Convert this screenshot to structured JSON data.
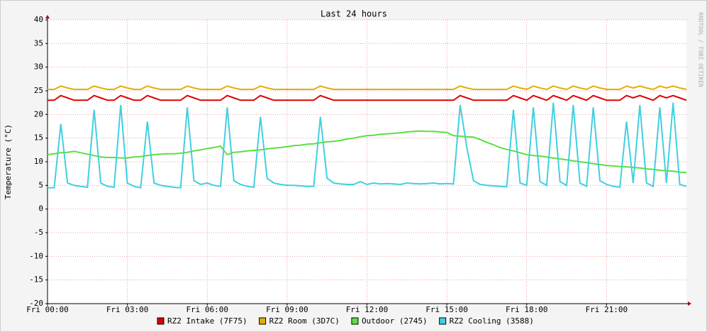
{
  "chart_data": {
    "type": "line",
    "title": "Last 24 hours",
    "y_label": "Temperature (°C)",
    "watermark": "RRDTOOL / TOBI OETIKER",
    "x": [
      0,
      0.25,
      0.5,
      0.75,
      1,
      1.25,
      1.5,
      1.75,
      2,
      2.25,
      2.5,
      2.75,
      3,
      3.25,
      3.5,
      3.75,
      4,
      4.25,
      4.5,
      4.75,
      5,
      5.25,
      5.5,
      5.75,
      6,
      6.25,
      6.5,
      6.75,
      7,
      7.25,
      7.5,
      7.75,
      8,
      8.25,
      8.5,
      8.75,
      9,
      9.25,
      9.5,
      9.75,
      10,
      10.25,
      10.5,
      10.75,
      11,
      11.25,
      11.5,
      11.75,
      12,
      12.25,
      12.5,
      12.75,
      13,
      13.25,
      13.5,
      13.75,
      14,
      14.25,
      14.5,
      14.75,
      15,
      15.25,
      15.5,
      15.75,
      16,
      16.25,
      16.5,
      16.75,
      17,
      17.25,
      17.5,
      17.75,
      18,
      18.25,
      18.5,
      18.75,
      19,
      19.25,
      19.5,
      19.75,
      20,
      20.25,
      20.5,
      20.75,
      21,
      21.25,
      21.5,
      21.75,
      22,
      22.25,
      22.5,
      22.75,
      23,
      23.25,
      23.5,
      23.75,
      24
    ],
    "xlim": [
      0,
      24
    ],
    "xticks": [
      {
        "value": 0,
        "label": "Fri 00:00"
      },
      {
        "value": 3,
        "label": "Fri 03:00"
      },
      {
        "value": 6,
        "label": "Fri 06:00"
      },
      {
        "value": 9,
        "label": "Fri 09:00"
      },
      {
        "value": 12,
        "label": "Fri 12:00"
      },
      {
        "value": 15,
        "label": "Fri 15:00"
      },
      {
        "value": 18,
        "label": "Fri 18:00"
      },
      {
        "value": 21,
        "label": "Fri 21:00"
      }
    ],
    "ylim": [
      -20,
      40
    ],
    "yticks": [
      -20,
      -15,
      -10,
      -5,
      0,
      5,
      10,
      15,
      20,
      25,
      30,
      35,
      40
    ],
    "grid": true,
    "series": [
      {
        "name": "RZ2 Intake (7F75)",
        "color": "#e00000",
        "values": [
          23,
          23,
          24,
          23.5,
          23,
          23,
          23,
          24,
          23.5,
          23,
          23,
          24,
          23.5,
          23,
          23,
          24,
          23.5,
          23,
          23,
          23,
          23,
          24,
          23.5,
          23,
          23,
          23,
          23,
          24,
          23.5,
          23,
          23,
          23,
          24,
          23.5,
          23,
          23,
          23,
          23,
          23,
          23,
          23,
          24,
          23.5,
          23,
          23,
          23,
          23,
          23,
          23,
          23,
          23,
          23,
          23,
          23,
          23,
          23,
          23,
          23,
          23,
          23,
          23,
          23,
          24,
          23.5,
          23,
          23,
          23,
          23,
          23,
          23,
          24,
          23.5,
          23,
          24,
          23.5,
          23,
          24,
          23.5,
          23,
          24,
          23.5,
          23,
          24,
          23.5,
          23,
          23,
          23,
          24,
          23.5,
          24,
          23.5,
          23,
          24,
          23.5,
          24,
          23.5,
          23
        ]
      },
      {
        "name": "RZ2 Room (3D7C)",
        "color": "#e0b000",
        "values": [
          25.3,
          25.3,
          26,
          25.6,
          25.3,
          25.3,
          25.3,
          26,
          25.6,
          25.3,
          25.3,
          26,
          25.6,
          25.3,
          25.3,
          26,
          25.6,
          25.3,
          25.3,
          25.3,
          25.3,
          26,
          25.6,
          25.3,
          25.3,
          25.3,
          25.3,
          26,
          25.6,
          25.3,
          25.3,
          25.3,
          26,
          25.6,
          25.3,
          25.3,
          25.3,
          25.3,
          25.3,
          25.3,
          25.3,
          26,
          25.6,
          25.3,
          25.3,
          25.3,
          25.3,
          25.3,
          25.3,
          25.3,
          25.3,
          25.3,
          25.3,
          25.3,
          25.3,
          25.3,
          25.3,
          25.3,
          25.3,
          25.3,
          25.3,
          25.3,
          26,
          25.6,
          25.3,
          25.3,
          25.3,
          25.3,
          25.3,
          25.3,
          26,
          25.6,
          25.3,
          26,
          25.6,
          25.3,
          26,
          25.6,
          25.3,
          26,
          25.6,
          25.3,
          26,
          25.6,
          25.3,
          25.3,
          25.3,
          26,
          25.6,
          26,
          25.6,
          25.3,
          26,
          25.6,
          26,
          25.6,
          25.3
        ]
      },
      {
        "name": "Outdoor (2745)",
        "color": "#5ae040",
        "values": [
          11.5,
          11.7,
          11.9,
          12.0,
          12.2,
          11.9,
          11.6,
          11.3,
          11.0,
          10.9,
          10.9,
          10.8,
          10.8,
          11.0,
          11.1,
          11.3,
          11.5,
          11.6,
          11.7,
          11.7,
          11.8,
          12.0,
          12.3,
          12.5,
          12.8,
          13.0,
          13.3,
          11.5,
          12.0,
          12.1,
          12.3,
          12.4,
          12.5,
          12.7,
          12.9,
          13.0,
          13.2,
          13.4,
          13.5,
          13.7,
          13.8,
          14.0,
          14.2,
          14.3,
          14.5,
          14.8,
          15.0,
          15.3,
          15.5,
          15.6,
          15.8,
          15.9,
          16.0,
          16.1,
          16.3,
          16.4,
          16.5,
          16.4,
          16.4,
          16.3,
          16.2,
          15.5,
          15.4,
          15.3,
          15.2,
          14.7,
          14.1,
          13.6,
          13.0,
          12.6,
          12.3,
          11.9,
          11.5,
          11.3,
          11.2,
          11.0,
          10.8,
          10.6,
          10.4,
          10.2,
          10.0,
          9.8,
          9.6,
          9.4,
          9.2,
          9.1,
          9.0,
          8.9,
          8.8,
          8.7,
          8.5,
          8.4,
          8.2,
          8.1,
          8.0,
          7.8,
          7.7
        ]
      },
      {
        "name": "RZ2 Cooling (3588)",
        "color": "#40d0e0",
        "values": [
          4.5,
          4.5,
          18,
          5.5,
          5,
          4.8,
          4.6,
          21,
          5.5,
          4.8,
          4.6,
          22,
          5.5,
          4.8,
          4.5,
          18.5,
          5.5,
          5,
          4.8,
          4.6,
          4.5,
          21.5,
          6,
          5.2,
          5.5,
          5,
          4.8,
          21.5,
          6,
          5.2,
          4.8,
          4.6,
          19.5,
          6.5,
          5.5,
          5.2,
          5,
          5,
          4.9,
          4.8,
          4.8,
          19.5,
          6.5,
          5.5,
          5.3,
          5.2,
          5.2,
          5.8,
          5.2,
          5.5,
          5.3,
          5.4,
          5.3,
          5.2,
          5.5,
          5.4,
          5.3,
          5.4,
          5.5,
          5.3,
          5.4,
          5.3,
          22,
          13,
          6,
          5.2,
          5,
          4.9,
          4.8,
          4.7,
          21,
          5.5,
          5,
          21.5,
          5.8,
          5,
          22.5,
          5.8,
          5,
          22,
          5.5,
          4.8,
          21.5,
          6,
          5.2,
          4.8,
          4.6,
          18.5,
          5.5,
          22,
          5.5,
          4.8,
          21.5,
          5.5,
          22.5,
          5.2,
          4.8
        ]
      }
    ]
  }
}
